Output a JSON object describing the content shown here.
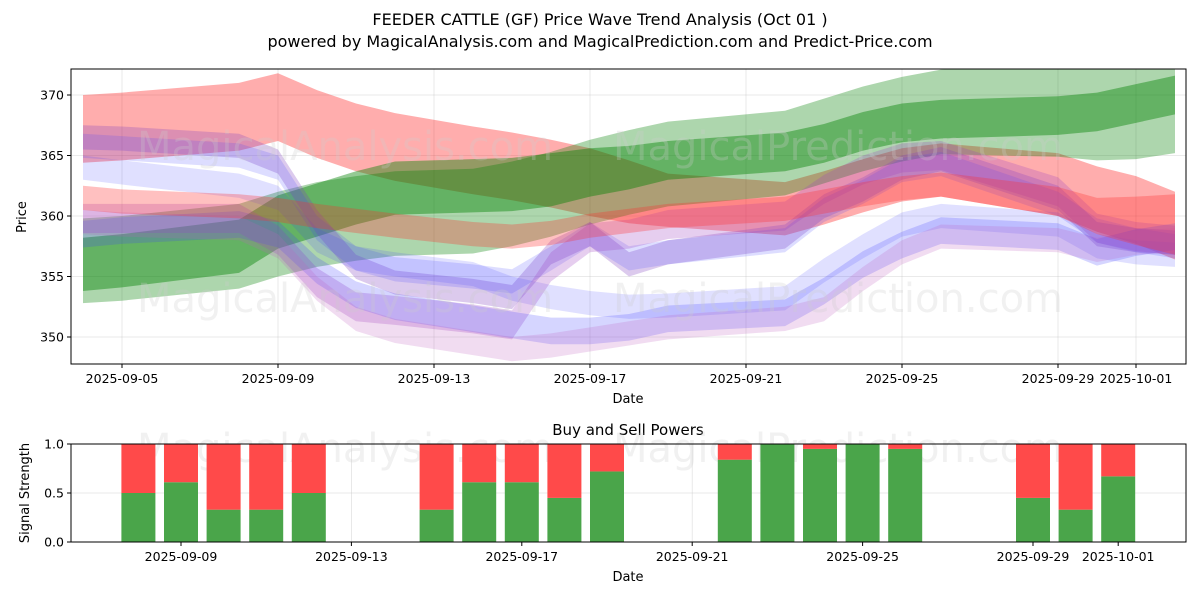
{
  "title": "FEEDER CATTLE (GF) Price Wave Trend Analysis (Oct 01 )",
  "subtitle": "powered by MagicalAnalysis.com and MagicalPrediction.com and Predict-Price.com",
  "watermarks": [
    "MagicalAnalysis.com",
    "MagicalPrediction.com"
  ],
  "chart_data": [
    {
      "type": "area",
      "title": "",
      "xlabel": "Date",
      "ylabel": "Price",
      "x_ticks": [
        "2025-09-05",
        "2025-09-09",
        "2025-09-13",
        "2025-09-17",
        "2025-09-21",
        "2025-09-25",
        "2025-09-29",
        "2025-10-01"
      ],
      "y_ticks": [
        350,
        355,
        360,
        365,
        370
      ],
      "ylim": [
        347.8,
        372.2
      ],
      "xlim": [
        "2025-09-04",
        "2025-10-02"
      ],
      "grid": true,
      "x": [
        "2025-09-04",
        "2025-09-05",
        "2025-09-08",
        "2025-09-09",
        "2025-09-10",
        "2025-09-11",
        "2025-09-12",
        "2025-09-14",
        "2025-09-15",
        "2025-09-16",
        "2025-09-17",
        "2025-09-18",
        "2025-09-19",
        "2025-09-22",
        "2025-09-23",
        "2025-09-24",
        "2025-09-25",
        "2025-09-26",
        "2025-09-29",
        "2025-09-30",
        "2025-10-01",
        "2025-10-02"
      ],
      "series": [
        {
          "name": "red-wide-upper",
          "color": "#ff0000",
          "opacity": 0.32,
          "center": [
            367.2,
            367.4,
            368.2,
            369.0,
            367.6,
            366.5,
            365.7,
            364.6,
            364.1,
            363.5,
            362.8,
            362.0,
            361.3,
            360.6,
            361.5,
            362.5,
            363.4,
            363.8,
            362.6,
            361.4,
            360.5,
            359.2
          ],
          "halfwidth": [
            2.8,
            2.8,
            2.8,
            2.8,
            2.8,
            2.8,
            2.8,
            2.8,
            2.8,
            2.8,
            2.8,
            2.6,
            2.2,
            2.2,
            2.2,
            2.2,
            2.2,
            2.2,
            2.6,
            2.7,
            2.8,
            2.8
          ]
        },
        {
          "name": "green-wide",
          "color": "#008000",
          "opacity": 0.32,
          "center": [
            356.3,
            356.5,
            357.5,
            358.5,
            359.3,
            359.8,
            360.2,
            360.4,
            361.0,
            361.8,
            362.8,
            363.6,
            364.3,
            365.2,
            366.2,
            367.2,
            368.0,
            368.6,
            368.7,
            368.8,
            369.2,
            369.8
          ],
          "halfwidth": [
            3.5,
            3.5,
            3.5,
            3.5,
            3.5,
            3.5,
            3.5,
            3.5,
            3.5,
            3.5,
            3.5,
            3.5,
            3.5,
            3.5,
            3.5,
            3.5,
            3.5,
            3.5,
            3.8,
            4.2,
            4.5,
            4.6
          ]
        },
        {
          "name": "green-narrow",
          "color": "#008000",
          "opacity": 0.42,
          "center": [
            356.0,
            356.3,
            357.5,
            359.5,
            360.5,
            361.5,
            362.3,
            362.5,
            362.6,
            363.0,
            363.6,
            364.0,
            364.6,
            365.3,
            366.0,
            367.0,
            367.7,
            368.0,
            368.3,
            368.6,
            369.3,
            370.0
          ],
          "halfwidth": [
            2.2,
            2.2,
            2.2,
            2.2,
            2.2,
            2.2,
            2.2,
            2.2,
            2.2,
            2.2,
            2.0,
            1.8,
            1.6,
            1.6,
            1.6,
            1.6,
            1.6,
            1.6,
            1.6,
            1.6,
            1.6,
            1.6
          ]
        },
        {
          "name": "purple-upper",
          "color": "#8040c0",
          "opacity": 0.28,
          "center": [
            366.5,
            366.4,
            365.8,
            364.5,
            359.5,
            355.8,
            354.5,
            353.8,
            353.3,
            357.0,
            358.5,
            356.0,
            357.0,
            358.3,
            360.8,
            362.2,
            364.0,
            364.7,
            361.5,
            358.5,
            358.0,
            357.8
          ],
          "halfwidth": [
            1.0,
            1.0,
            1.0,
            1.0,
            1.0,
            1.0,
            1.0,
            1.0,
            1.0,
            1.0,
            1.0,
            1.0,
            1.0,
            1.0,
            1.0,
            1.0,
            1.0,
            1.0,
            1.0,
            1.0,
            1.0,
            1.0
          ]
        },
        {
          "name": "blue-upper-1",
          "color": "#4040ff",
          "opacity": 0.18,
          "center": [
            365.8,
            365.6,
            365.0,
            364.0,
            359.0,
            356.5,
            355.6,
            355.0,
            354.6,
            356.5,
            358.5,
            356.5,
            357.0,
            358.0,
            360.5,
            362.0,
            363.8,
            364.3,
            361.0,
            358.8,
            358.0,
            357.5
          ],
          "halfwidth": [
            1.0,
            1.0,
            1.0,
            1.0,
            1.0,
            1.0,
            1.0,
            1.0,
            1.0,
            1.0,
            1.0,
            1.0,
            1.0,
            1.0,
            1.0,
            1.0,
            1.0,
            1.0,
            1.0,
            1.0,
            1.0,
            1.0
          ]
        },
        {
          "name": "blue-upper-2",
          "color": "#4040ff",
          "opacity": 0.16,
          "center": [
            364.0,
            363.6,
            362.5,
            361.5,
            358.0,
            356.5,
            356.0,
            355.2,
            354.0,
            353.3,
            352.8,
            352.5,
            352.6,
            353.2,
            355.5,
            357.5,
            359.3,
            360.0,
            359.3,
            357.5,
            357.0,
            356.8
          ],
          "halfwidth": [
            1.0,
            1.0,
            1.0,
            1.0,
            1.0,
            1.0,
            1.0,
            1.0,
            1.0,
            1.0,
            1.0,
            1.0,
            1.0,
            1.0,
            1.0,
            1.0,
            1.0,
            1.0,
            1.0,
            1.0,
            1.0,
            1.0
          ]
        },
        {
          "name": "purple-lower",
          "color": "#a040c0",
          "opacity": 0.26,
          "center": [
            359.8,
            359.8,
            359.8,
            358.0,
            354.5,
            352.5,
            352.2,
            351.5,
            351.0,
            355.8,
            358.2,
            358.5,
            359.3,
            360.0,
            362.2,
            363.8,
            364.8,
            365.0,
            362.0,
            359.0,
            358.3,
            358.0
          ],
          "halfwidth": [
            1.2,
            1.2,
            1.2,
            1.2,
            1.2,
            1.2,
            1.2,
            1.2,
            1.2,
            1.2,
            1.2,
            1.2,
            1.2,
            1.2,
            1.2,
            1.2,
            1.2,
            1.2,
            1.2,
            1.2,
            1.2,
            1.2
          ]
        },
        {
          "name": "blue-lower",
          "color": "#4040ff",
          "opacity": 0.22,
          "center": [
            358.5,
            358.8,
            359.3,
            358.5,
            355.5,
            353.5,
            352.5,
            351.5,
            351.0,
            350.5,
            350.5,
            350.8,
            351.5,
            352.0,
            353.8,
            356.0,
            357.6,
            358.8,
            358.3,
            357.0,
            357.8,
            358.3
          ],
          "halfwidth": [
            1.1,
            1.1,
            1.1,
            1.1,
            1.1,
            1.1,
            1.1,
            1.1,
            1.1,
            1.1,
            1.1,
            1.1,
            1.1,
            1.1,
            1.1,
            1.1,
            1.1,
            1.1,
            1.1,
            1.1,
            1.1,
            1.1
          ]
        },
        {
          "name": "pink-lowest",
          "color": "#c060c0",
          "opacity": 0.22,
          "center": [
            359.5,
            359.3,
            359.0,
            357.5,
            354.0,
            351.5,
            350.5,
            349.5,
            349.0,
            349.3,
            349.8,
            350.3,
            350.8,
            351.5,
            352.3,
            354.8,
            357.0,
            358.3,
            358.0,
            357.2,
            357.8,
            358.0
          ],
          "halfwidth": [
            1.0,
            1.0,
            1.0,
            1.0,
            1.0,
            1.0,
            1.0,
            1.0,
            1.0,
            1.0,
            1.0,
            1.0,
            1.0,
            1.0,
            1.0,
            1.0,
            1.0,
            1.0,
            1.0,
            1.0,
            1.0,
            1.0
          ]
        },
        {
          "name": "red-lower",
          "color": "#ff3030",
          "opacity": 0.3,
          "center": [
            361.5,
            361.2,
            360.8,
            360.5,
            360.0,
            359.6,
            359.2,
            358.5,
            358.3,
            358.6,
            359.2,
            359.6,
            360.0,
            360.6,
            361.2,
            361.8,
            362.3,
            362.6,
            361.2,
            360.0,
            359.6,
            359.3
          ],
          "halfwidth": [
            1.0,
            1.0,
            1.0,
            1.0,
            1.0,
            1.0,
            1.0,
            1.0,
            1.0,
            1.0,
            1.0,
            1.0,
            1.0,
            1.0,
            1.0,
            1.0,
            1.0,
            1.0,
            1.2,
            1.5,
            2.0,
            2.5
          ]
        }
      ]
    },
    {
      "type": "bar",
      "title": "Buy and Sell Powers",
      "xlabel": "Date",
      "ylabel": "Signal Strength",
      "x_ticks": [
        "2025-09-09",
        "2025-09-13",
        "2025-09-17",
        "2025-09-21",
        "2025-09-25",
        "2025-09-29",
        "2025-10-01"
      ],
      "y_ticks": [
        "0.0",
        "0.5",
        "1.0"
      ],
      "ylim": [
        0,
        1
      ],
      "xlim": [
        "2025-09-06",
        "2025-10-03"
      ],
      "grid": true,
      "stacked": true,
      "categories": [
        "2025-09-08",
        "2025-09-09",
        "2025-09-10",
        "2025-09-11",
        "2025-09-12",
        "2025-09-15",
        "2025-09-16",
        "2025-09-17",
        "2025-09-18",
        "2025-09-19",
        "2025-09-22",
        "2025-09-23",
        "2025-09-24",
        "2025-09-25",
        "2025-09-26",
        "2025-09-29",
        "2025-09-30",
        "2025-10-01"
      ],
      "series": [
        {
          "name": "Buy",
          "color": "#4aa54a",
          "values": [
            0.5,
            0.61,
            0.33,
            0.33,
            0.5,
            0.33,
            0.61,
            0.61,
            0.45,
            0.72,
            0.84,
            1.0,
            0.95,
            1.0,
            0.95,
            0.45,
            0.33,
            0.67
          ]
        },
        {
          "name": "Sell",
          "color": "#ff4a4a",
          "values": [
            0.5,
            0.39,
            0.67,
            0.67,
            0.5,
            0.67,
            0.39,
            0.39,
            0.55,
            0.28,
            0.16,
            0.0,
            0.05,
            0.0,
            0.05,
            0.55,
            0.67,
            0.33
          ]
        }
      ]
    }
  ]
}
